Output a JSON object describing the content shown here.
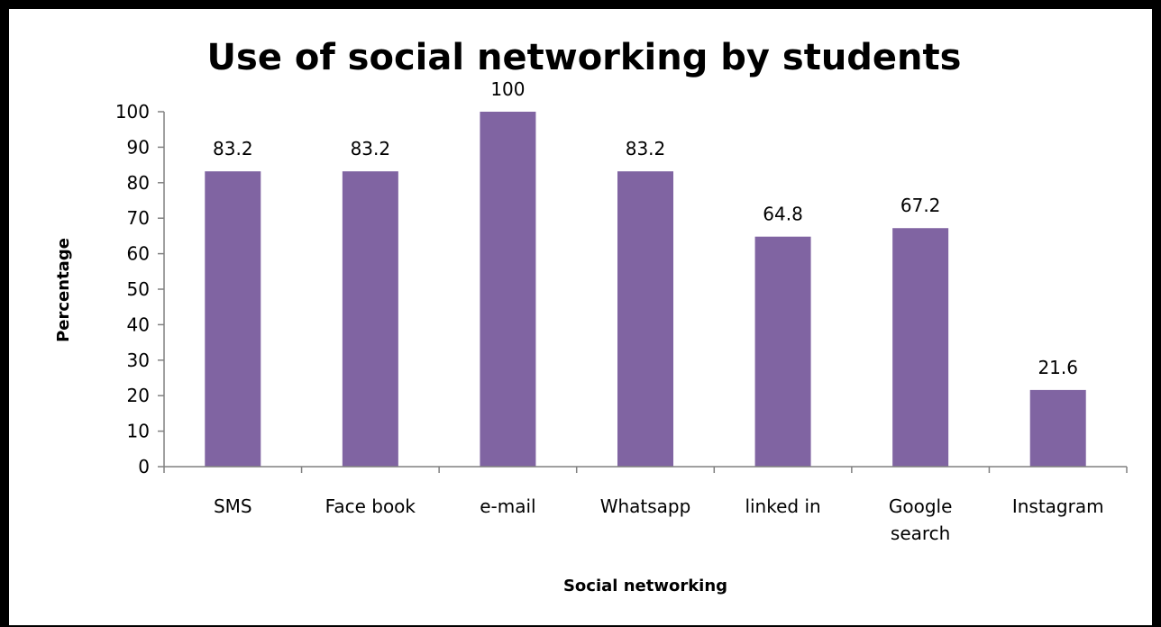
{
  "chart_data": {
    "type": "bar",
    "title": "Use of social networking by students",
    "xlabel": "Social networking",
    "ylabel": "Percentage",
    "categories": [
      [
        "SMS"
      ],
      [
        "Face book"
      ],
      [
        "e-mail"
      ],
      [
        "Whatsapp"
      ],
      [
        "linked in"
      ],
      [
        "Google",
        "search"
      ],
      [
        "Instagram"
      ]
    ],
    "values": [
      83.2,
      83.2,
      100,
      83.2,
      64.8,
      67.2,
      21.6
    ],
    "data_labels": [
      "83.2",
      "83.2",
      "100",
      "83.2",
      "64.8",
      "67.2",
      "21.6"
    ],
    "yticks": [
      "0",
      "10",
      "20",
      "30",
      "40",
      "50",
      "60",
      "70",
      "80",
      "90",
      "100"
    ],
    "ylim": [
      0,
      100
    ],
    "grid": false,
    "legend": "none",
    "bar_color": "#8064A2"
  }
}
